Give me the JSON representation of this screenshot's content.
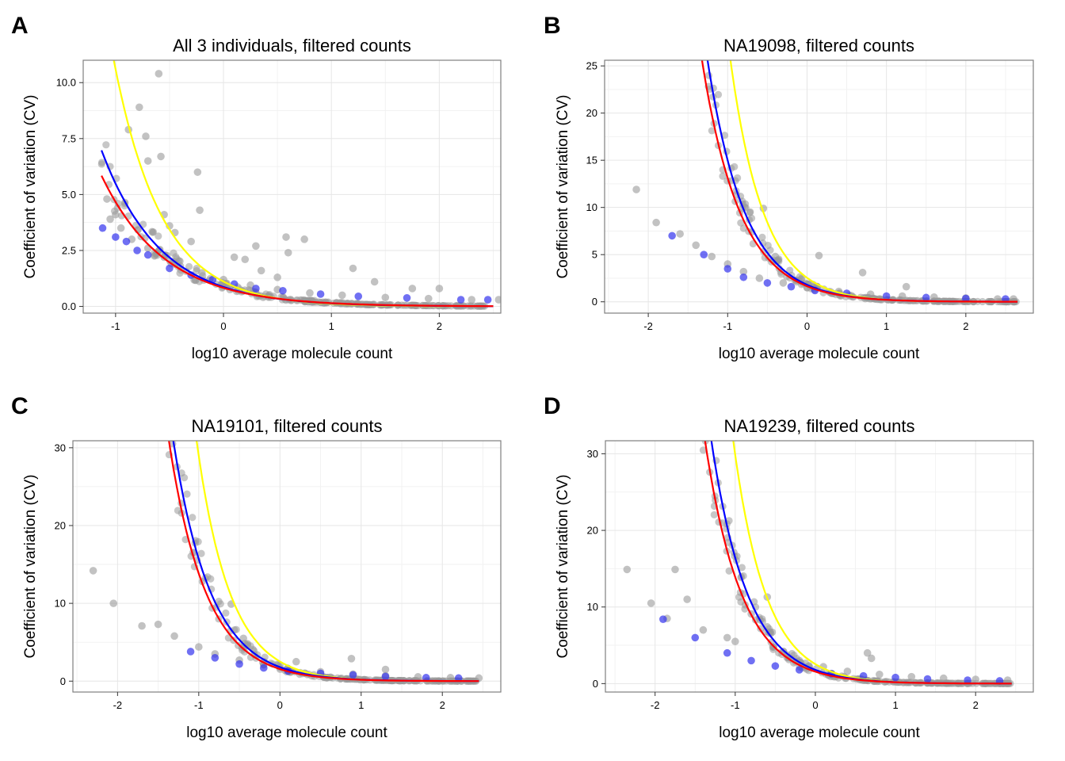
{
  "chart_data": [
    {
      "type": "scatter",
      "panel_label": "A",
      "title": "All 3 individuals, filtered counts",
      "xlabel": "log10 average molecule count",
      "ylabel": "Coefficient of variation (CV)",
      "xlim": [
        -1.3,
        2.57
      ],
      "ylim": [
        -0.3,
        11.0
      ],
      "xticks": [
        -1,
        0,
        1,
        2
      ],
      "yticks": [
        0.0,
        2.5,
        5.0,
        7.5,
        10.0
      ],
      "ytick_labels": [
        "0.0",
        "2.5",
        "5.0",
        "7.5",
        "10.0"
      ],
      "grid": true,
      "points_gray": [
        [
          -0.6,
          10.4
        ],
        [
          -0.78,
          8.9
        ],
        [
          -0.88,
          7.9
        ],
        [
          -0.72,
          7.6
        ],
        [
          -0.58,
          6.7
        ],
        [
          -0.7,
          6.5
        ],
        [
          -0.24,
          6.0
        ],
        [
          -0.22,
          4.3
        ],
        [
          -0.55,
          4.1
        ],
        [
          -1.08,
          4.8
        ],
        [
          -1.0,
          4.1
        ],
        [
          -0.5,
          3.6
        ],
        [
          -0.45,
          3.3
        ],
        [
          -0.3,
          2.9
        ],
        [
          0.3,
          2.7
        ],
        [
          0.58,
          3.1
        ],
        [
          0.75,
          3.0
        ],
        [
          0.6,
          2.4
        ],
        [
          0.1,
          2.2
        ],
        [
          0.2,
          2.1
        ],
        [
          1.2,
          1.7
        ],
        [
          0.35,
          1.6
        ],
        [
          0.5,
          1.3
        ],
        [
          1.4,
          1.1
        ],
        [
          1.75,
          0.8
        ],
        [
          2.0,
          0.8
        ],
        [
          -1.05,
          3.9
        ],
        [
          -0.95,
          3.5
        ],
        [
          -0.85,
          3.0
        ],
        [
          -0.7,
          2.6
        ],
        [
          -0.55,
          2.2
        ],
        [
          -0.4,
          1.8
        ],
        [
          -0.2,
          1.5
        ],
        [
          0.0,
          1.2
        ],
        [
          0.25,
          0.95
        ],
        [
          0.5,
          0.75
        ],
        [
          0.8,
          0.6
        ],
        [
          1.1,
          0.5
        ],
        [
          1.5,
          0.4
        ],
        [
          1.9,
          0.35
        ],
        [
          2.3,
          0.3
        ],
        [
          2.55,
          0.3
        ]
      ],
      "points_blue": [
        [
          -1.12,
          3.5
        ],
        [
          -1.0,
          3.1
        ],
        [
          -0.9,
          2.9
        ],
        [
          -0.8,
          2.5
        ],
        [
          -0.7,
          2.3
        ],
        [
          -0.5,
          1.7
        ],
        [
          -0.3,
          1.4
        ],
        [
          -0.1,
          1.2
        ],
        [
          0.1,
          1.0
        ],
        [
          0.3,
          0.8
        ],
        [
          0.55,
          0.7
        ],
        [
          0.9,
          0.55
        ],
        [
          1.25,
          0.45
        ],
        [
          1.7,
          0.38
        ],
        [
          2.2,
          0.3
        ],
        [
          2.45,
          0.3
        ]
      ],
      "curves": [
        {
          "color": "#ffff00",
          "x_range": [
            -1.13,
            2.5
          ],
          "a": 1.11,
          "b": 0.98
        },
        {
          "color": "#0000ff",
          "x_range": [
            -1.13,
            2.5
          ],
          "a": 0.87,
          "b": 0.8
        },
        {
          "color": "#ff0000",
          "x_range": [
            -1.13,
            2.5
          ],
          "a": 0.83,
          "b": 0.75
        }
      ]
    },
    {
      "type": "scatter",
      "panel_label": "B",
      "title": "NA19098, filtered counts",
      "xlabel": "log10 average molecule count",
      "ylabel": "Coefficient of variation (CV)",
      "xlim": [
        -2.55,
        2.85
      ],
      "ylim": [
        -1.2,
        25.6
      ],
      "xticks": [
        -2,
        -1,
        0,
        1,
        2
      ],
      "yticks": [
        0,
        5,
        10,
        15,
        20,
        25
      ],
      "ytick_labels": [
        "0",
        "5",
        "10",
        "15",
        "20",
        "25"
      ],
      "grid": true,
      "points_gray": [
        [
          -2.15,
          11.9
        ],
        [
          -1.9,
          8.4
        ],
        [
          -1.6,
          7.2
        ],
        [
          -1.4,
          6.0
        ],
        [
          -1.2,
          4.8
        ],
        [
          -1.0,
          4.0
        ],
        [
          -0.55,
          9.9
        ],
        [
          -0.4,
          4.8
        ],
        [
          0.15,
          4.9
        ],
        [
          0.7,
          3.1
        ],
        [
          1.25,
          1.6
        ],
        [
          -0.8,
          3.2
        ],
        [
          -0.6,
          2.5
        ],
        [
          -0.3,
          2.0
        ],
        [
          0.0,
          1.5
        ],
        [
          0.4,
          1.1
        ],
        [
          0.8,
          0.8
        ],
        [
          1.2,
          0.6
        ],
        [
          1.6,
          0.5
        ],
        [
          2.0,
          0.4
        ],
        [
          2.4,
          0.3
        ],
        [
          2.6,
          0.3
        ]
      ],
      "points_blue": [
        [
          -1.7,
          7.0
        ],
        [
          -1.3,
          5.0
        ],
        [
          -1.0,
          3.5
        ],
        [
          -0.8,
          2.6
        ],
        [
          -0.5,
          2.0
        ],
        [
          -0.2,
          1.6
        ],
        [
          0.1,
          1.2
        ],
        [
          0.5,
          0.9
        ],
        [
          1.0,
          0.6
        ],
        [
          1.5,
          0.45
        ],
        [
          2.0,
          0.35
        ],
        [
          2.5,
          0.3
        ]
      ],
      "curves": [
        {
          "color": "#ffff00",
          "x_range": [
            -2.15,
            2.65
          ],
          "a": 2.54,
          "b": 1.04
        },
        {
          "color": "#0000ff",
          "x_range": [
            -2.15,
            2.65
          ],
          "a": 1.8,
          "b": 0.92
        },
        {
          "color": "#ff0000",
          "x_range": [
            -2.15,
            2.65
          ],
          "a": 1.65,
          "b": 0.9
        }
      ]
    },
    {
      "type": "scatter",
      "panel_label": "C",
      "title": "NA19101, filtered counts",
      "xlabel": "log10 average molecule count",
      "ylabel": "Coefficient of variation (CV)",
      "xlim": [
        -2.55,
        2.72
      ],
      "ylim": [
        -1.4,
        30.9
      ],
      "xticks": [
        -2,
        -1,
        0,
        1,
        2
      ],
      "yticks": [
        0,
        10,
        20,
        30
      ],
      "ytick_labels": [
        "0",
        "10",
        "20",
        "30"
      ],
      "grid": true,
      "points_gray": [
        [
          -2.3,
          14.2
        ],
        [
          -2.05,
          10.0
        ],
        [
          -1.7,
          7.1
        ],
        [
          -1.5,
          7.3
        ],
        [
          -1.3,
          5.8
        ],
        [
          -1.0,
          4.4
        ],
        [
          -0.6,
          9.9
        ],
        [
          -0.45,
          5.5
        ],
        [
          -0.4,
          4.8
        ],
        [
          0.2,
          2.5
        ],
        [
          0.88,
          2.9
        ],
        [
          1.3,
          1.5
        ],
        [
          -0.8,
          3.5
        ],
        [
          -0.5,
          2.7
        ],
        [
          -0.2,
          2.1
        ],
        [
          0.1,
          1.6
        ],
        [
          0.5,
          1.2
        ],
        [
          0.9,
          0.9
        ],
        [
          1.3,
          0.7
        ],
        [
          1.7,
          0.55
        ],
        [
          2.1,
          0.45
        ],
        [
          2.45,
          0.4
        ]
      ],
      "points_blue": [
        [
          -1.1,
          3.8
        ],
        [
          -0.8,
          3.0
        ],
        [
          -0.5,
          2.2
        ],
        [
          -0.2,
          1.7
        ],
        [
          0.1,
          1.3
        ],
        [
          0.5,
          1.0
        ],
        [
          0.9,
          0.8
        ],
        [
          1.3,
          0.6
        ],
        [
          1.8,
          0.45
        ],
        [
          2.2,
          0.4
        ]
      ],
      "curves": [
        {
          "color": "#ffff00",
          "x_range": [
            -2.3,
            2.45
          ],
          "a": 2.52,
          "b": 1.06
        },
        {
          "color": "#0000ff",
          "x_range": [
            -2.3,
            2.45
          ],
          "a": 1.8,
          "b": 0.94
        },
        {
          "color": "#ff0000",
          "x_range": [
            -2.3,
            2.45
          ],
          "a": 1.55,
          "b": 0.95
        }
      ]
    },
    {
      "type": "scatter",
      "panel_label": "D",
      "title": "NA19239, filtered counts",
      "xlabel": "log10 average molecule count",
      "ylabel": "Coefficient of variation (CV)",
      "xlim": [
        -2.62,
        2.72
      ],
      "ylim": [
        -1.1,
        31.7
      ],
      "xticks": [
        -2,
        -1,
        0,
        1,
        2
      ],
      "yticks": [
        0,
        10,
        20,
        30
      ],
      "ytick_labels": [
        "0",
        "10",
        "20",
        "30"
      ],
      "grid": true,
      "points_gray": [
        [
          -2.35,
          14.9
        ],
        [
          -2.05,
          10.5
        ],
        [
          -1.75,
          14.9
        ],
        [
          -1.85,
          8.5
        ],
        [
          -1.6,
          11.0
        ],
        [
          -1.4,
          7.0
        ],
        [
          -1.1,
          6.0
        ],
        [
          -1.0,
          5.5
        ],
        [
          -0.8,
          9.1
        ],
        [
          -0.6,
          11.3
        ],
        [
          -0.6,
          7.4
        ],
        [
          0.65,
          4.0
        ],
        [
          0.7,
          3.3
        ],
        [
          -0.4,
          4.2
        ],
        [
          -0.2,
          3.0
        ],
        [
          0.1,
          2.2
        ],
        [
          0.4,
          1.6
        ],
        [
          0.8,
          1.2
        ],
        [
          1.2,
          0.9
        ],
        [
          1.6,
          0.7
        ],
        [
          2.0,
          0.55
        ],
        [
          2.4,
          0.45
        ]
      ],
      "points_blue": [
        [
          -1.9,
          8.4
        ],
        [
          -1.5,
          6.0
        ],
        [
          -1.1,
          4.0
        ],
        [
          -0.8,
          3.0
        ],
        [
          -0.5,
          2.3
        ],
        [
          -0.2,
          1.8
        ],
        [
          0.2,
          1.3
        ],
        [
          0.6,
          1.0
        ],
        [
          1.0,
          0.8
        ],
        [
          1.4,
          0.6
        ],
        [
          1.9,
          0.45
        ],
        [
          2.3,
          0.35
        ]
      ],
      "curves": [
        {
          "color": "#ffff00",
          "x_range": [
            -2.35,
            2.45
          ],
          "a": 2.54,
          "b": 1.07
        },
        {
          "color": "#0000ff",
          "x_range": [
            -2.35,
            2.45
          ],
          "a": 1.8,
          "b": 0.96
        },
        {
          "color": "#ff0000",
          "x_range": [
            -2.35,
            2.45
          ],
          "a": 1.56,
          "b": 0.95
        }
      ]
    }
  ]
}
